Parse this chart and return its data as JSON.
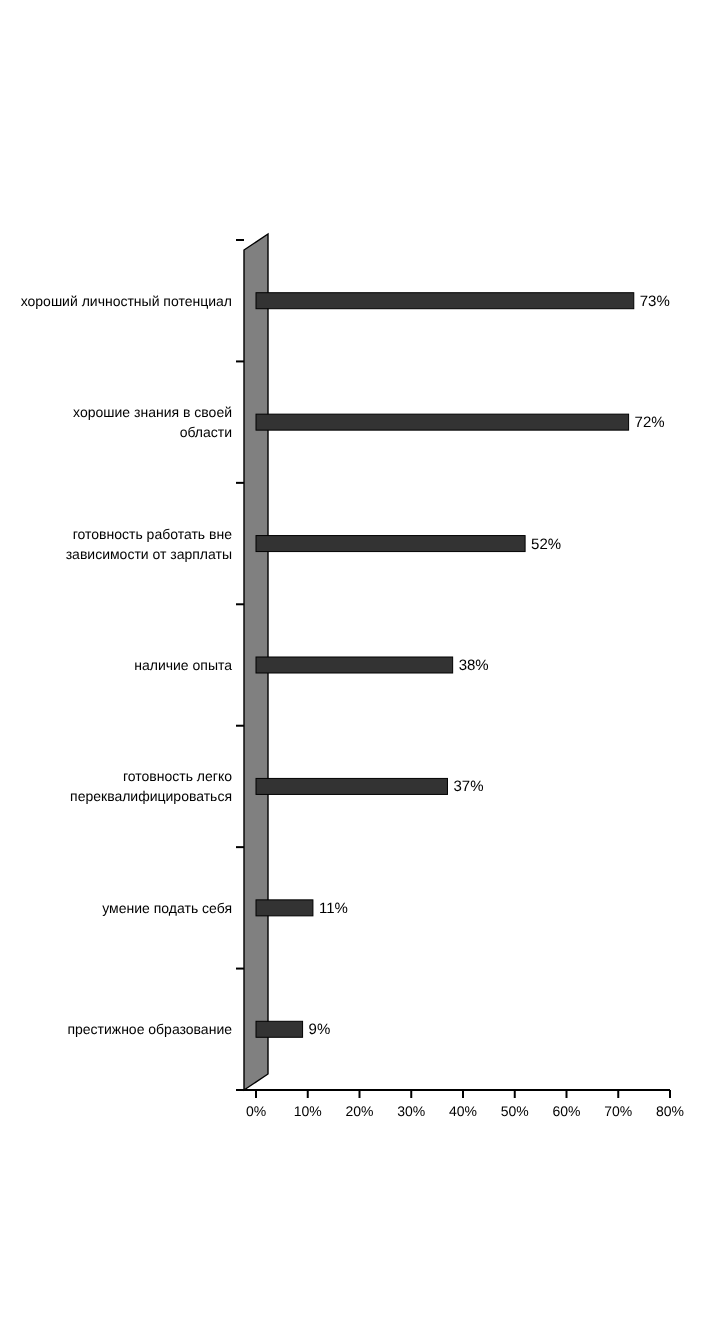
{
  "chart_data": {
    "type": "bar",
    "orientation": "horizontal",
    "categories": [
      "хороший личностный потенциал",
      "хорошие знания в своей области",
      "готовность работать вне зависимости от зарплаты",
      "наличие опыта",
      "готовность легко переквалифицироваться",
      "умение подать себя",
      "престижное образование"
    ],
    "values": [
      73,
      72,
      52,
      38,
      37,
      11,
      9
    ],
    "value_labels": [
      "73%",
      "72%",
      "52%",
      "38%",
      "37%",
      "11%",
      "9%"
    ],
    "color": "#333333",
    "xlim": [
      0,
      80
    ],
    "xticks": [
      {
        "value": 0,
        "label": "0%"
      },
      {
        "value": 10,
        "label": "10%"
      },
      {
        "value": 20,
        "label": "20%"
      },
      {
        "value": 30,
        "label": "30%"
      },
      {
        "value": 40,
        "label": "40%"
      },
      {
        "value": 50,
        "label": "50%"
      },
      {
        "value": 60,
        "label": "60%"
      },
      {
        "value": 70,
        "label": "70%"
      },
      {
        "value": 80,
        "label": "80%"
      }
    ],
    "grid": false
  }
}
